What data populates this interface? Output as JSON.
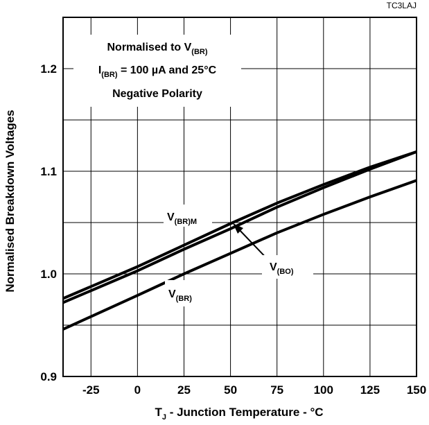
{
  "chart_data": {
    "type": "line",
    "figure_code": "TC3LAJ",
    "xlabel": "T_J - Junction Temperature - °C",
    "xlabel_parts": {
      "main": "T",
      "sub": "J",
      "rest": " - Junction Temperature - °C"
    },
    "ylabel": "Normalised Breakdown Voltages",
    "xlim": [
      -40,
      150
    ],
    "ylim": [
      0.9,
      1.25
    ],
    "x_ticks": [
      -25,
      0,
      25,
      50,
      75,
      100,
      125,
      150
    ],
    "x_tick_labels": [
      "-25",
      "0",
      "25",
      "50",
      "75",
      "100",
      "125",
      "150"
    ],
    "y_ticks": [
      0.9,
      1.0,
      1.1,
      1.2
    ],
    "y_tick_labels": [
      "0.9",
      "1.0",
      "1.1",
      "1.2"
    ],
    "grid": true,
    "annotation_lines": [
      {
        "main": "Normalised to V",
        "sub": "(BR)",
        "rest": ""
      },
      {
        "main": "I",
        "sub": "(BR)",
        "rest": " = 100 µA and 25°C"
      },
      {
        "main": "Negative Polarity",
        "sub": "",
        "rest": ""
      }
    ],
    "series": [
      {
        "name": "V(BR)M",
        "label_main": "V",
        "label_sub": "(BR)M",
        "x": [
          -40,
          0,
          25,
          50,
          75,
          100,
          125,
          150
        ],
        "y": [
          0.976,
          1.007,
          1.028,
          1.049,
          1.069,
          1.087,
          1.104,
          1.119
        ]
      },
      {
        "name": "V(BO)",
        "label_main": "V",
        "label_sub": "(BO)",
        "x": [
          -40,
          0,
          25,
          50,
          75,
          100,
          125,
          150
        ],
        "y": [
          0.972,
          1.003,
          1.024,
          1.044,
          1.065,
          1.084,
          1.102,
          1.119
        ]
      },
      {
        "name": "V(BR)",
        "label_main": "V",
        "label_sub": "(BR)",
        "x": [
          -40,
          0,
          25,
          50,
          75,
          100,
          125,
          150
        ],
        "y": [
          0.946,
          0.979,
          1.0,
          1.02,
          1.04,
          1.058,
          1.075,
          1.091
        ]
      }
    ]
  }
}
